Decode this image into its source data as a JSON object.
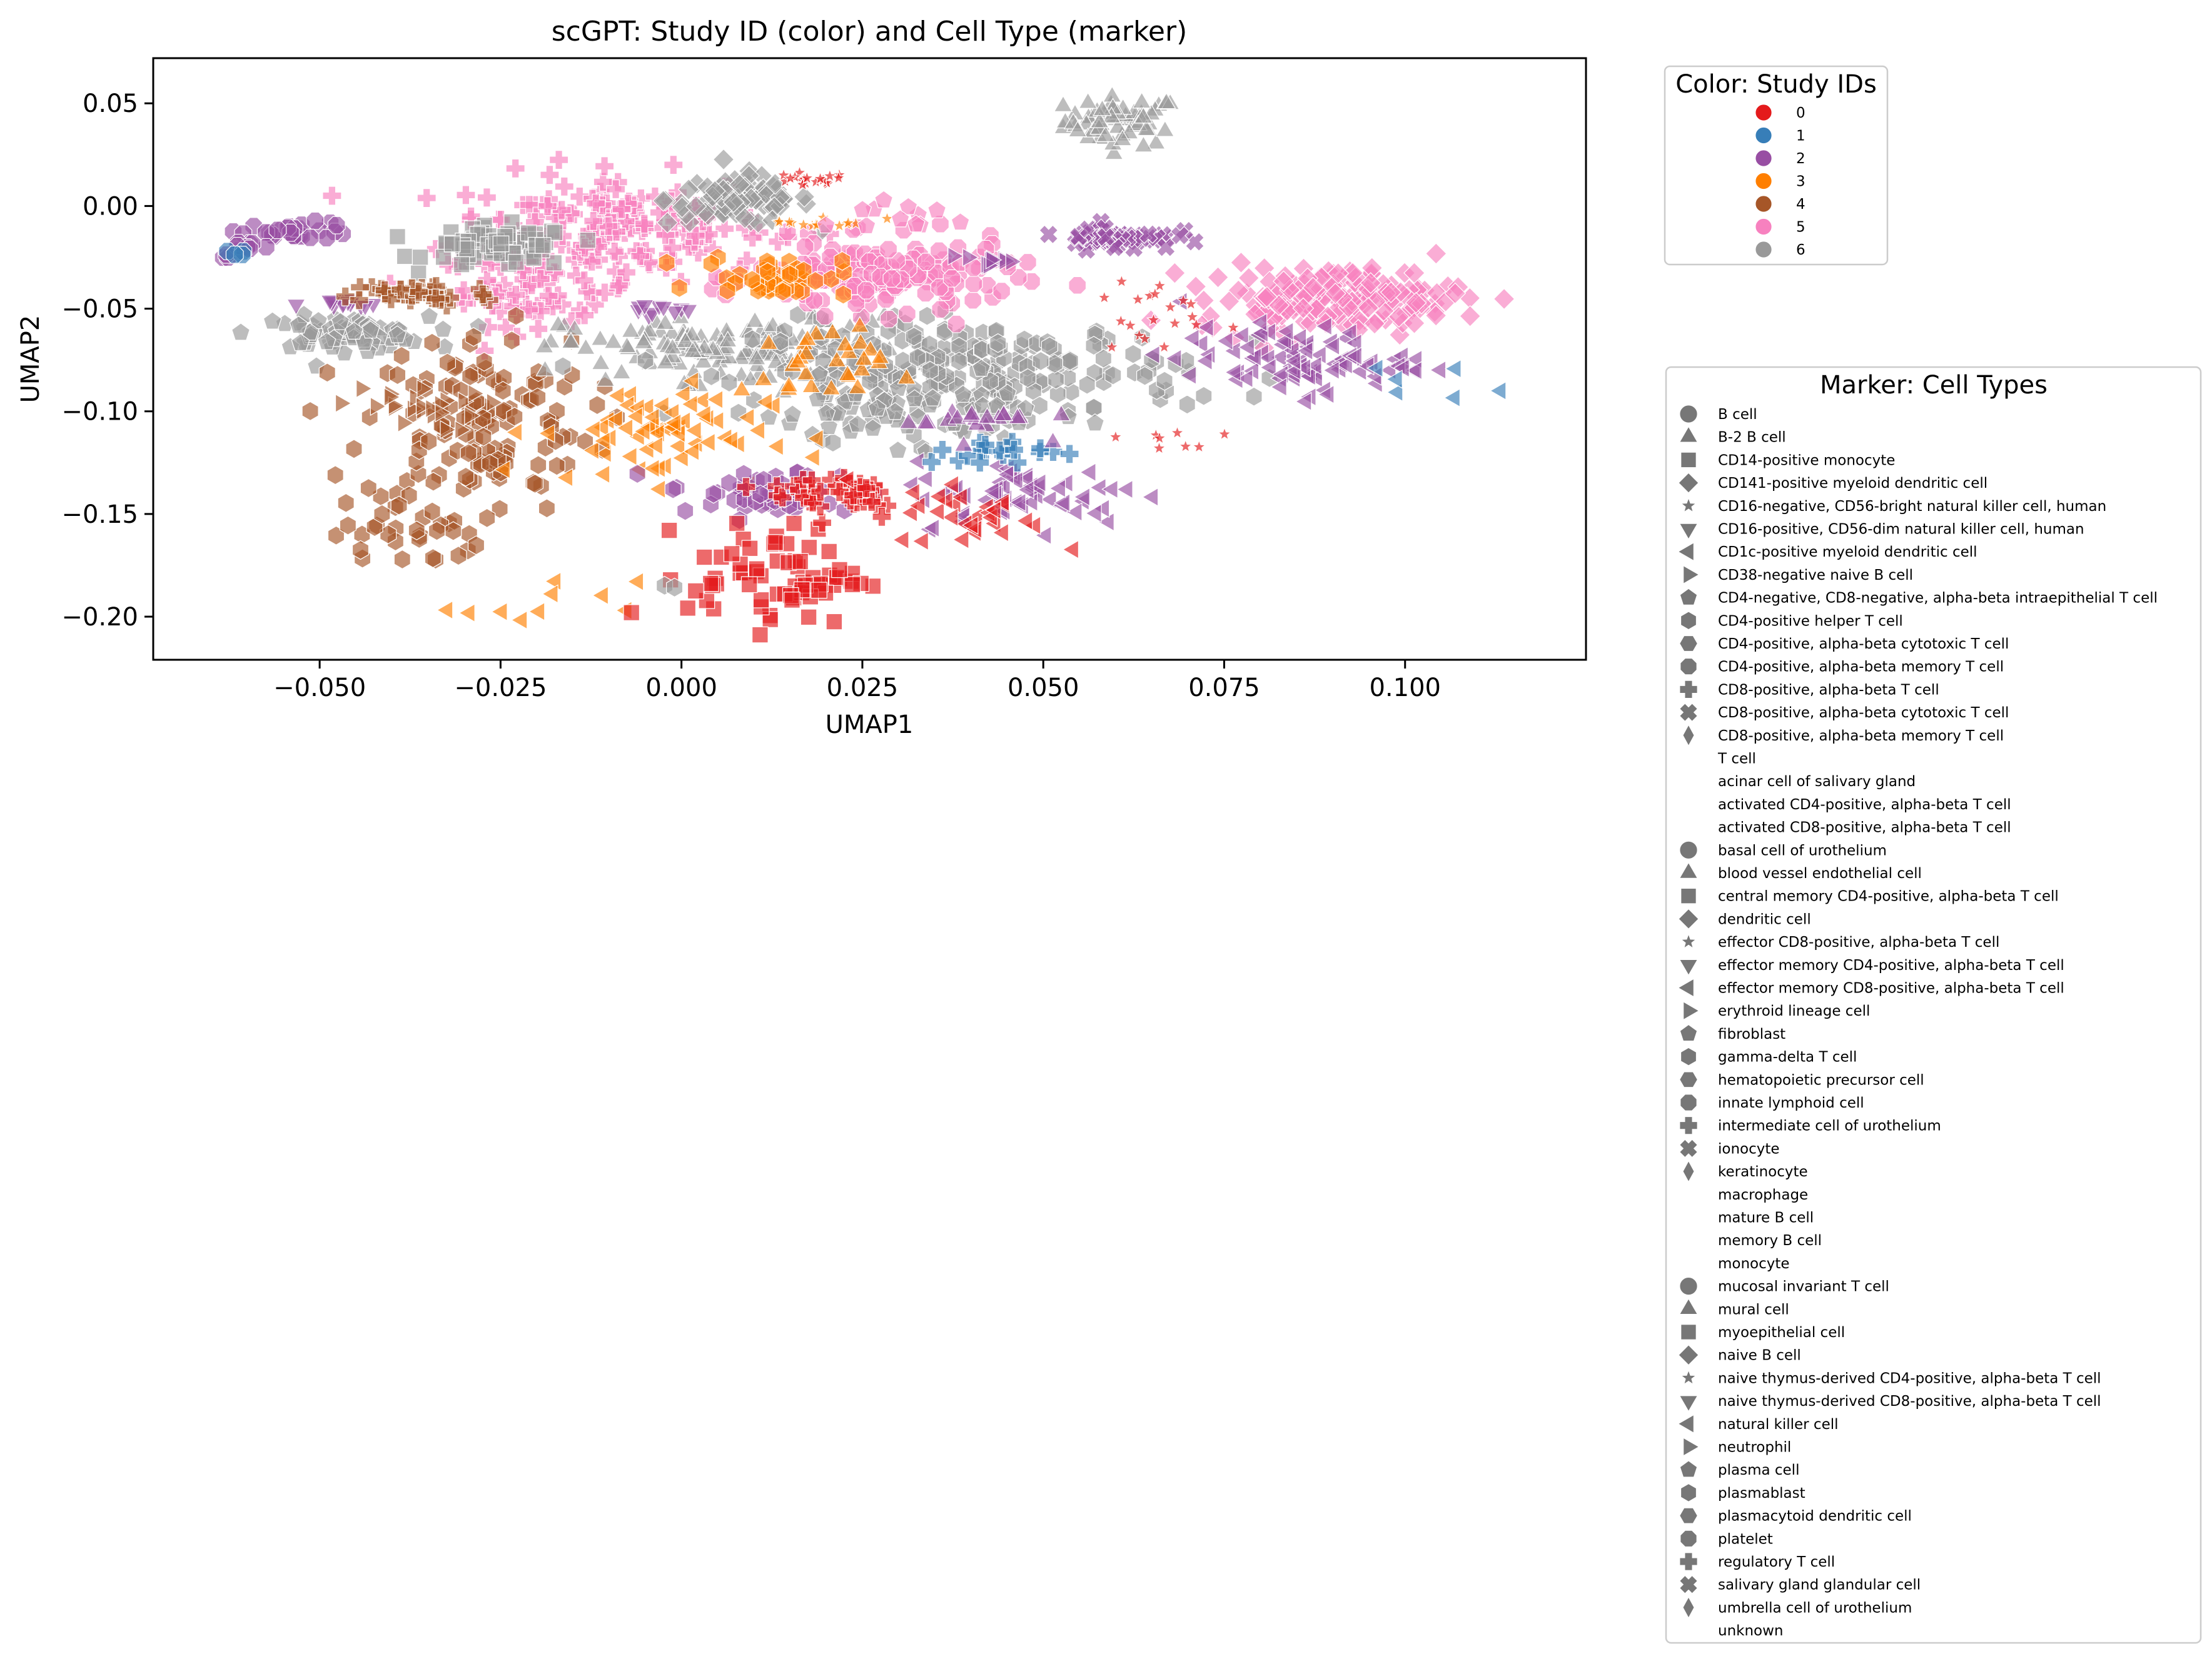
{
  "chart_data": {
    "type": "scatter",
    "title": "scGPT: Study ID (color) and Cell Type (marker)",
    "xlabel": "UMAP1",
    "ylabel": "UMAP2",
    "xlim": [
      -0.073,
      0.125
    ],
    "ylim": [
      -0.221,
      0.072
    ],
    "xticks": [
      -0.05,
      -0.025,
      0.0,
      0.025,
      0.05,
      0.075,
      0.1
    ],
    "xtick_labels": [
      "−0.050",
      "−0.025",
      "0.000",
      "0.025",
      "0.050",
      "0.075",
      "0.100"
    ],
    "yticks": [
      0.05,
      0.0,
      -0.05,
      -0.1,
      -0.15,
      -0.2
    ],
    "ytick_labels": [
      "0.05",
      "0.00",
      "−0.05",
      "−0.10",
      "−0.15",
      "−0.20"
    ],
    "grid": false,
    "color_legend": {
      "title": "Color: Study IDs",
      "placement": "outside-right-top",
      "entries": [
        {
          "label": "0",
          "color": "#e41a1c"
        },
        {
          "label": "1",
          "color": "#377eb8"
        },
        {
          "label": "2",
          "color": "#984ea3"
        },
        {
          "label": "3",
          "color": "#ff7f00"
        },
        {
          "label": "4",
          "color": "#a65628"
        },
        {
          "label": "5",
          "color": "#f781bf"
        },
        {
          "label": "6",
          "color": "#999999"
        }
      ]
    },
    "marker_legend": {
      "title": "Marker: Cell Types",
      "placement": "outside-right",
      "marker_color": "#777777",
      "entries": [
        {
          "label": "B cell",
          "marker": "circle"
        },
        {
          "label": "B-2 B cell",
          "marker": "triangle-up"
        },
        {
          "label": "CD14-positive monocyte",
          "marker": "square"
        },
        {
          "label": "CD141-positive myeloid dendritic cell",
          "marker": "diamond"
        },
        {
          "label": "CD16-negative, CD56-bright natural killer cell, human",
          "marker": "star"
        },
        {
          "label": "CD16-positive, CD56-dim natural killer cell, human",
          "marker": "triangle-down"
        },
        {
          "label": "CD1c-positive myeloid dendritic cell",
          "marker": "triangle-left"
        },
        {
          "label": "CD38-negative naive B cell",
          "marker": "triangle-right"
        },
        {
          "label": "CD4-negative, CD8-negative, alpha-beta intraepithelial T cell",
          "marker": "pentagon"
        },
        {
          "label": "CD4-positive helper T cell",
          "marker": "hexagon"
        },
        {
          "label": "CD4-positive, alpha-beta cytotoxic T cell",
          "marker": "hexagon2"
        },
        {
          "label": "CD4-positive, alpha-beta memory T cell",
          "marker": "octagon"
        },
        {
          "label": "CD8-positive, alpha-beta T cell",
          "marker": "plus"
        },
        {
          "label": "CD8-positive, alpha-beta cytotoxic T cell",
          "marker": "x"
        },
        {
          "label": "CD8-positive, alpha-beta memory T cell",
          "marker": "thin-diamond"
        },
        {
          "label": "T cell",
          "marker": "none"
        },
        {
          "label": "acinar cell of salivary gland",
          "marker": "none"
        },
        {
          "label": "activated CD4-positive, alpha-beta T cell",
          "marker": "none"
        },
        {
          "label": "activated CD8-positive, alpha-beta T cell",
          "marker": "none"
        },
        {
          "label": "basal cell of urothelium",
          "marker": "circle"
        },
        {
          "label": "blood vessel endothelial cell",
          "marker": "triangle-up"
        },
        {
          "label": "central memory CD4-positive, alpha-beta T cell",
          "marker": "square"
        },
        {
          "label": "dendritic cell",
          "marker": "diamond"
        },
        {
          "label": "effector CD8-positive, alpha-beta T cell",
          "marker": "star"
        },
        {
          "label": "effector memory CD4-positive, alpha-beta T cell",
          "marker": "triangle-down"
        },
        {
          "label": "effector memory CD8-positive, alpha-beta T cell",
          "marker": "triangle-left"
        },
        {
          "label": "erythroid lineage cell",
          "marker": "triangle-right"
        },
        {
          "label": "fibroblast",
          "marker": "pentagon"
        },
        {
          "label": "gamma-delta T cell",
          "marker": "hexagon"
        },
        {
          "label": "hematopoietic precursor cell",
          "marker": "hexagon2"
        },
        {
          "label": "innate lymphoid cell",
          "marker": "octagon"
        },
        {
          "label": "intermediate cell of urothelium",
          "marker": "plus"
        },
        {
          "label": "ionocyte",
          "marker": "x"
        },
        {
          "label": "keratinocyte",
          "marker": "thin-diamond"
        },
        {
          "label": "macrophage",
          "marker": "none"
        },
        {
          "label": "mature B cell",
          "marker": "none"
        },
        {
          "label": "memory B cell",
          "marker": "none"
        },
        {
          "label": "monocyte",
          "marker": "none"
        },
        {
          "label": "mucosal invariant T cell",
          "marker": "circle"
        },
        {
          "label": "mural cell",
          "marker": "triangle-up"
        },
        {
          "label": "myoepithelial cell",
          "marker": "square"
        },
        {
          "label": "naive B cell",
          "marker": "diamond"
        },
        {
          "label": "naive thymus-derived CD4-positive, alpha-beta T cell",
          "marker": "star"
        },
        {
          "label": "naive thymus-derived CD8-positive, alpha-beta T cell",
          "marker": "triangle-down"
        },
        {
          "label": "natural killer cell",
          "marker": "triangle-left"
        },
        {
          "label": "neutrophil",
          "marker": "triangle-right"
        },
        {
          "label": "plasma cell",
          "marker": "pentagon"
        },
        {
          "label": "plasmablast",
          "marker": "hexagon"
        },
        {
          "label": "plasmacytoid dendritic cell",
          "marker": "hexagon2"
        },
        {
          "label": "platelet",
          "marker": "octagon"
        },
        {
          "label": "regulatory T cell",
          "marker": "plus"
        },
        {
          "label": "salivary gland glandular cell",
          "marker": "x"
        },
        {
          "label": "umbrella cell of urothelium",
          "marker": "thin-diamond"
        },
        {
          "label": "unknown",
          "marker": "none"
        }
      ]
    },
    "clusters": [
      {
        "study": 6,
        "marker": "triangle-up",
        "cx": 0.061,
        "cy": 0.041,
        "sx": 0.004,
        "sy": 0.006,
        "n": 60
      },
      {
        "study": 5,
        "marker": "plus",
        "cx": -0.01,
        "cy": -0.01,
        "sx": 0.011,
        "sy": 0.013,
        "n": 170
      },
      {
        "study": 5,
        "marker": "plus",
        "cx": -0.02,
        "cy": -0.04,
        "sx": 0.007,
        "sy": 0.009,
        "n": 70
      },
      {
        "study": 6,
        "marker": "diamond",
        "cx": 0.008,
        "cy": 0.003,
        "sx": 0.005,
        "sy": 0.006,
        "n": 80
      },
      {
        "study": 0,
        "marker": "star",
        "cx": 0.017,
        "cy": 0.012,
        "sx": 0.003,
        "sy": 0.002,
        "n": 18
      },
      {
        "study": 6,
        "marker": "square",
        "cx": -0.025,
        "cy": -0.02,
        "sx": 0.005,
        "sy": 0.005,
        "n": 70
      },
      {
        "study": 2,
        "marker": "octagon",
        "cx": -0.053,
        "cy": -0.012,
        "sx": 0.004,
        "sy": 0.002,
        "n": 28
      },
      {
        "study": 2,
        "marker": "octagon",
        "cx": -0.06,
        "cy": -0.021,
        "sx": 0.002,
        "sy": 0.002,
        "n": 12
      },
      {
        "study": 1,
        "marker": "octagon",
        "cx": -0.062,
        "cy": -0.023,
        "sx": 0.001,
        "sy": 0.0015,
        "n": 4
      },
      {
        "study": 6,
        "marker": "pentagon",
        "cx": -0.047,
        "cy": -0.062,
        "sx": 0.006,
        "sy": 0.004,
        "n": 70
      },
      {
        "study": 2,
        "marker": "triangle-down",
        "cx": -0.047,
        "cy": -0.048,
        "sx": 0.003,
        "sy": 0.0015,
        "n": 14
      },
      {
        "study": 4,
        "marker": "plus",
        "cx": -0.036,
        "cy": -0.043,
        "sx": 0.005,
        "sy": 0.003,
        "n": 40
      },
      {
        "study": 4,
        "marker": "hexagon",
        "cx": -0.028,
        "cy": -0.105,
        "sx": 0.008,
        "sy": 0.022,
        "n": 130
      },
      {
        "study": 4,
        "marker": "triangle-right",
        "cx": -0.038,
        "cy": -0.098,
        "sx": 0.005,
        "sy": 0.006,
        "n": 24
      },
      {
        "study": 4,
        "marker": "hexagon",
        "cx": -0.038,
        "cy": -0.16,
        "sx": 0.005,
        "sy": 0.008,
        "n": 30
      },
      {
        "study": 6,
        "marker": "triangle-up",
        "cx": 0.008,
        "cy": -0.07,
        "sx": 0.012,
        "sy": 0.008,
        "n": 150
      },
      {
        "study": 6,
        "marker": "hexagon",
        "cx": 0.04,
        "cy": -0.08,
        "sx": 0.015,
        "sy": 0.012,
        "n": 220
      },
      {
        "study": 6,
        "marker": "pentagon",
        "cx": 0.03,
        "cy": -0.1,
        "sx": 0.01,
        "sy": 0.008,
        "n": 60
      },
      {
        "study": 5,
        "marker": "octagon",
        "cx": 0.028,
        "cy": -0.035,
        "sx": 0.009,
        "sy": 0.009,
        "n": 150
      },
      {
        "study": 3,
        "marker": "hexagon",
        "cx": 0.013,
        "cy": -0.034,
        "sx": 0.005,
        "sy": 0.005,
        "n": 40
      },
      {
        "study": 3,
        "marker": "star",
        "cx": 0.02,
        "cy": -0.008,
        "sx": 0.004,
        "sy": 0.0015,
        "n": 14
      },
      {
        "study": 3,
        "marker": "triangle-left",
        "cx": -0.004,
        "cy": -0.11,
        "sx": 0.008,
        "sy": 0.012,
        "n": 70
      },
      {
        "study": 3,
        "marker": "triangle-up",
        "cx": 0.018,
        "cy": -0.08,
        "sx": 0.005,
        "sy": 0.01,
        "n": 30
      },
      {
        "study": 3,
        "marker": "triangle-left",
        "cx": -0.018,
        "cy": -0.195,
        "sx": 0.006,
        "sy": 0.006,
        "n": 10
      },
      {
        "study": 2,
        "marker": "hexagon",
        "cx": 0.012,
        "cy": -0.14,
        "sx": 0.007,
        "sy": 0.006,
        "n": 50
      },
      {
        "study": 0,
        "marker": "square",
        "cx": 0.013,
        "cy": -0.18,
        "sx": 0.006,
        "sy": 0.012,
        "n": 70
      },
      {
        "study": 0,
        "marker": "plus",
        "cx": 0.022,
        "cy": -0.14,
        "sx": 0.005,
        "sy": 0.006,
        "n": 40
      },
      {
        "study": 2,
        "marker": "triangle-left",
        "cx": 0.048,
        "cy": -0.14,
        "sx": 0.008,
        "sy": 0.008,
        "n": 60
      },
      {
        "study": 0,
        "marker": "triangle-left",
        "cx": 0.04,
        "cy": -0.15,
        "sx": 0.005,
        "sy": 0.008,
        "n": 30
      },
      {
        "study": 1,
        "marker": "plus",
        "cx": 0.045,
        "cy": -0.12,
        "sx": 0.006,
        "sy": 0.003,
        "n": 20
      },
      {
        "study": 2,
        "marker": "x",
        "cx": 0.06,
        "cy": -0.015,
        "sx": 0.004,
        "sy": 0.003,
        "n": 50
      },
      {
        "study": 5,
        "marker": "diamond",
        "cx": 0.09,
        "cy": -0.045,
        "sx": 0.009,
        "sy": 0.008,
        "n": 160
      },
      {
        "study": 2,
        "marker": "triangle-left",
        "cx": 0.085,
        "cy": -0.075,
        "sx": 0.008,
        "sy": 0.008,
        "n": 90
      },
      {
        "study": 0,
        "marker": "star",
        "cx": 0.065,
        "cy": -0.055,
        "sx": 0.004,
        "sy": 0.01,
        "n": 20
      },
      {
        "study": 2,
        "marker": "triangle-right",
        "cx": 0.042,
        "cy": -0.027,
        "sx": 0.003,
        "sy": 0.002,
        "n": 12
      },
      {
        "study": 0,
        "marker": "star",
        "cx": 0.068,
        "cy": -0.113,
        "sx": 0.004,
        "sy": 0.004,
        "n": 8
      },
      {
        "study": 2,
        "marker": "triangle-up",
        "cx": 0.04,
        "cy": -0.105,
        "sx": 0.005,
        "sy": 0.004,
        "n": 20
      },
      {
        "study": 1,
        "marker": "triangle-left",
        "cx": 0.1,
        "cy": -0.085,
        "sx": 0.004,
        "sy": 0.005,
        "n": 6
      },
      {
        "study": 2,
        "marker": "triangle-down",
        "cx": -0.005,
        "cy": -0.05,
        "sx": 0.003,
        "sy": 0.0015,
        "n": 10
      },
      {
        "study": 6,
        "marker": "hexagon",
        "cx": -0.002,
        "cy": -0.185,
        "sx": 0.001,
        "sy": 0.001,
        "n": 2
      },
      {
        "study": 5,
        "marker": "pentagon",
        "cx": 0.03,
        "cy": -0.005,
        "sx": 0.005,
        "sy": 0.005,
        "n": 12
      }
    ]
  }
}
